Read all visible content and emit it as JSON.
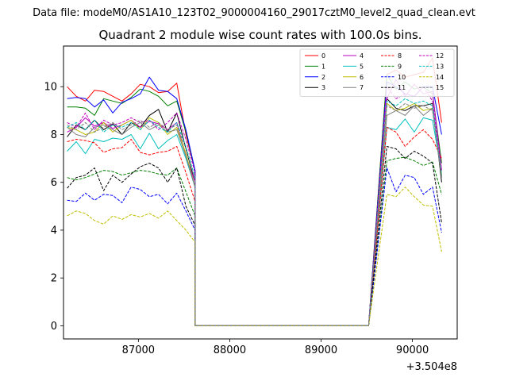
{
  "figure": {
    "suptitle": "Data file: modeM0/AS1A10_123T02_9000004160_29017cztM0_level2_quad_clean.evt"
  },
  "chart_data": {
    "type": "line",
    "title": "Quadrant 2 module wise count rates with 100.0s bins.",
    "xlabel": "",
    "ylabel": "",
    "x_offset_label": "+3.504e8",
    "x_offset": 350400000,
    "xlim": [
      86180,
      90490
    ],
    "ylim": [
      -0.55,
      11.7
    ],
    "x_ticks": [
      87000,
      88000,
      89000,
      90000
    ],
    "y_ticks": [
      0,
      2,
      4,
      6,
      8,
      10
    ],
    "grid": false,
    "legend_position": "upper right",
    "legend_columns": 4,
    "x_seg1_start": 86220,
    "x_seg1_step": 100,
    "x_seg1_count": 15,
    "x_gap_start": 87620,
    "x_gap_end": 89520,
    "x_seg2_start": 89720,
    "x_seg2_step": 100,
    "x_seg2_count": 7,
    "series": [
      {
        "name": "0",
        "color": "#ff0000",
        "dashed": false,
        "seg1": [
          10.0,
          9.6,
          9.4,
          9.85,
          9.8,
          9.6,
          9.4,
          9.7,
          10.1,
          10.0,
          9.75,
          9.8,
          10.15,
          8.0,
          6.5
        ],
        "seg2": [
          10.5,
          10.7,
          10.4,
          10.5,
          10.6,
          11.2,
          8.5
        ]
      },
      {
        "name": "1",
        "color": "#008000",
        "dashed": false,
        "seg1": [
          9.15,
          9.15,
          9.1,
          8.8,
          9.5,
          9.4,
          9.3,
          9.55,
          9.9,
          9.8,
          9.6,
          9.2,
          9.4,
          8.1,
          6.5
        ],
        "seg2": [
          10.5,
          9.9,
          10.2,
          9.9,
          10.0,
          9.7,
          6.8
        ]
      },
      {
        "name": "2",
        "color": "#0000ff",
        "dashed": false,
        "seg1": [
          9.5,
          9.55,
          9.5,
          9.15,
          9.45,
          8.9,
          9.35,
          9.5,
          9.7,
          10.4,
          9.85,
          9.8,
          9.5,
          8.2,
          6.5
        ],
        "seg2": [
          10.2,
          10.0,
          9.7,
          9.6,
          10.0,
          10.0,
          8.0
        ]
      },
      {
        "name": "3",
        "color": "#000000",
        "dashed": false,
        "seg1": [
          7.9,
          8.4,
          8.2,
          8.6,
          8.2,
          8.45,
          8.0,
          8.5,
          8.3,
          8.8,
          9.05,
          8.1,
          8.9,
          7.4,
          6.0
        ],
        "seg2": [
          9.5,
          9.1,
          9.0,
          9.2,
          9.2,
          9.3,
          6.0
        ]
      },
      {
        "name": "4",
        "color": "#c000c0",
        "dashed": false,
        "seg1": [
          8.1,
          8.3,
          8.7,
          8.35,
          8.5,
          8.25,
          8.4,
          8.6,
          8.3,
          8.55,
          8.45,
          8.2,
          8.5,
          7.1,
          6.0
        ],
        "seg2": [
          9.5,
          10.3,
          9.6,
          10.1,
          9.7,
          9.8,
          6.5
        ]
      },
      {
        "name": "5",
        "color": "#00bfbf",
        "dashed": false,
        "seg1": [
          7.3,
          7.7,
          7.2,
          7.8,
          7.7,
          7.85,
          7.8,
          8.0,
          7.4,
          8.05,
          7.4,
          7.75,
          8.0,
          7.0,
          5.8
        ],
        "seg2": [
          8.3,
          8.2,
          8.65,
          8.1,
          8.7,
          8.6,
          6.4
        ]
      },
      {
        "name": "6",
        "color": "#bfbf00",
        "dashed": false,
        "seg1": [
          8.3,
          8.2,
          8.0,
          8.1,
          8.5,
          8.1,
          8.4,
          8.6,
          8.2,
          8.7,
          8.5,
          8.0,
          8.3,
          7.2,
          5.8
        ],
        "seg2": [
          9.3,
          9.0,
          9.1,
          9.3,
          9.0,
          9.1,
          6.3
        ]
      },
      {
        "name": "7",
        "color": "#808080",
        "dashed": false,
        "seg1": [
          8.3,
          8.0,
          7.9,
          8.3,
          8.4,
          8.2,
          8.0,
          8.3,
          8.5,
          8.2,
          8.4,
          8.1,
          8.2,
          7.1,
          5.8
        ],
        "seg2": [
          8.8,
          9.0,
          8.8,
          9.2,
          8.8,
          9.1,
          6.2
        ]
      },
      {
        "name": "8",
        "color": "#ff0000",
        "dashed": true,
        "seg1": [
          7.7,
          7.8,
          7.75,
          7.65,
          7.25,
          7.4,
          7.45,
          7.8,
          7.25,
          7.15,
          7.25,
          7.3,
          7.5,
          6.4,
          5.2
        ],
        "seg2": [
          8.3,
          8.1,
          7.5,
          7.9,
          8.2,
          7.8,
          7.0
        ]
      },
      {
        "name": "9",
        "color": "#008000",
        "dashed": true,
        "seg1": [
          6.2,
          6.1,
          6.2,
          6.35,
          6.5,
          6.45,
          6.3,
          6.4,
          6.5,
          6.45,
          6.35,
          6.3,
          6.6,
          5.6,
          4.6
        ],
        "seg2": [
          6.9,
          7.0,
          7.05,
          6.9,
          6.7,
          6.85,
          5.5
        ]
      },
      {
        "name": "10",
        "color": "#0000ff",
        "dashed": true,
        "seg1": [
          5.25,
          5.2,
          5.55,
          5.25,
          5.5,
          5.45,
          5.15,
          5.8,
          5.7,
          5.4,
          5.5,
          5.1,
          5.55,
          4.8,
          4.0
        ],
        "seg2": [
          6.6,
          5.6,
          6.3,
          6.2,
          5.5,
          5.8,
          3.9
        ]
      },
      {
        "name": "11",
        "color": "#000000",
        "dashed": true,
        "seg1": [
          5.75,
          6.2,
          6.3,
          6.6,
          5.65,
          6.3,
          6.0,
          6.35,
          6.65,
          6.8,
          6.6,
          6.0,
          6.6,
          5.0,
          4.2
        ],
        "seg2": [
          7.5,
          7.4,
          7.0,
          7.3,
          7.1,
          6.8,
          4.3
        ]
      },
      {
        "name": "12",
        "color": "#c000c0",
        "dashed": true,
        "seg1": [
          8.5,
          8.3,
          8.9,
          8.2,
          8.6,
          8.4,
          8.5,
          8.7,
          8.5,
          8.6,
          8.2,
          8.5,
          8.9,
          7.8,
          6.4
        ],
        "seg2": [
          10.0,
          9.5,
          9.7,
          9.6,
          10.0,
          9.4,
          6.5
        ]
      },
      {
        "name": "13",
        "color": "#00bfbf",
        "dashed": true,
        "seg1": [
          8.3,
          8.5,
          8.2,
          8.6,
          8.1,
          8.4,
          8.3,
          8.5,
          8.2,
          8.6,
          8.3,
          8.1,
          8.5,
          7.5,
          6.2
        ],
        "seg2": [
          9.4,
          9.2,
          9.5,
          9.3,
          9.4,
          9.2,
          6.3
        ]
      },
      {
        "name": "14",
        "color": "#bfbf00",
        "dashed": true,
        "seg1": [
          4.6,
          4.8,
          4.7,
          4.4,
          4.25,
          4.6,
          4.45,
          4.65,
          4.55,
          4.7,
          4.5,
          4.8,
          4.4,
          4.0,
          3.5
        ],
        "seg2": [
          5.5,
          5.4,
          5.8,
          5.4,
          5.05,
          5.0,
          3.1
        ]
      },
      {
        "name": "15",
        "color": "#808080",
        "dashed": true,
        "seg1": [
          8.4,
          8.2,
          8.5,
          8.1,
          8.3,
          8.5,
          8.2,
          8.4,
          8.6,
          8.3,
          8.5,
          8.2,
          8.4,
          7.4,
          6.1
        ],
        "seg2": [
          9.2,
          9.0,
          9.3,
          9.1,
          9.2,
          9.0,
          6.2
        ]
      }
    ]
  }
}
